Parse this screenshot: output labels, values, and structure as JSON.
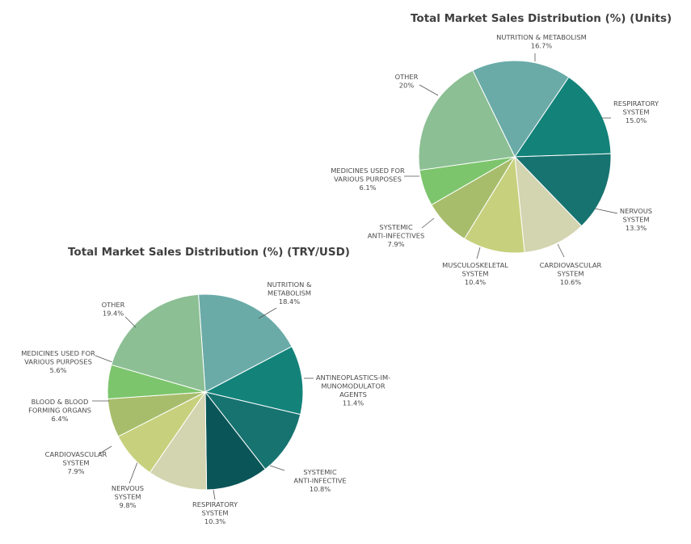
{
  "chart_data": [
    {
      "type": "pie",
      "title": "Total Market Sales Distribution (%) (Units)",
      "slices": [
        {
          "label": [
            "NUTRITION & METABOLISM"
          ],
          "value_text": "16.7%",
          "value": 16.7,
          "color": "#6aaba8"
        },
        {
          "label": [
            "RESPIRATORY",
            "SYSTEM"
          ],
          "value_text": "15.0%",
          "value": 15.0,
          "color": "#13837a"
        },
        {
          "label": [
            "NERVOUS",
            "SYSTEM"
          ],
          "value_text": "13.3%",
          "value": 13.3,
          "color": "#177370"
        },
        {
          "label": [
            "CARDIOVASCULAR",
            "SYSTEM"
          ],
          "value_text": "10.6%",
          "value": 10.6,
          "color": "#d3d4b0"
        },
        {
          "label": [
            "MUSCULOSKELETAL",
            "SYSTEM"
          ],
          "value_text": "10.4%",
          "value": 10.4,
          "color": "#c7d17d"
        },
        {
          "label": [
            "SYSTEMIC",
            "ANTI-INFECTIVES"
          ],
          "value_text": "7.9%",
          "value": 7.9,
          "color": "#a8bd6c"
        },
        {
          "label": [
            "MEDICINES USED FOR",
            "VARIOUS PURPOSES"
          ],
          "value_text": "6.1%",
          "value": 6.1,
          "color": "#7cc56c"
        },
        {
          "label": [
            "OTHER"
          ],
          "value_text": "20%",
          "value": 20,
          "color": "#8cbf94"
        }
      ]
    },
    {
      "type": "pie",
      "title": "Total Market Sales Distribution (%) (TRY/USD)",
      "slices": [
        {
          "label": [
            "NUTRITION &",
            "METABOLISM"
          ],
          "value_text": "18.4%",
          "value": 18.4,
          "color": "#6aaba8"
        },
        {
          "label": [
            "ANTINEOPLASTICS-IM-",
            "MUNOMODULATOR",
            "AGENTS"
          ],
          "value_text": "11.4%",
          "value": 11.4,
          "color": "#13837a"
        },
        {
          "label": [
            "SYSTEMIC",
            "ANTI-INFECTIVE"
          ],
          "value_text": "10.8%",
          "value": 10.8,
          "color": "#177370"
        },
        {
          "label": [
            "RESPIRATORY",
            "SYSTEM"
          ],
          "value_text": "10.3%",
          "value": 10.3,
          "color": "#0a5558"
        },
        {
          "label": [
            "NERVOUS",
            "SYSTEM"
          ],
          "value_text": "9.8%",
          "value": 9.8,
          "color": "#d3d4b0"
        },
        {
          "label": [
            "CARDIOVASCULAR",
            "SYSTEM"
          ],
          "value_text": "7.9%",
          "value": 7.9,
          "color": "#c7d17d"
        },
        {
          "label": [
            "BLOOD & BLOOD",
            "FORMING ORGANS"
          ],
          "value_text": "6.4%",
          "value": 6.4,
          "color": "#a8bd6c"
        },
        {
          "label": [
            "MEDICINES USED FOR",
            "VARIOUS PURPOSES"
          ],
          "value_text": "5.6%",
          "value": 5.6,
          "color": "#7cc56c"
        },
        {
          "label": [
            "OTHER"
          ],
          "value_text": "19.4%",
          "value": 19.4,
          "color": "#8cbf94"
        }
      ]
    }
  ]
}
